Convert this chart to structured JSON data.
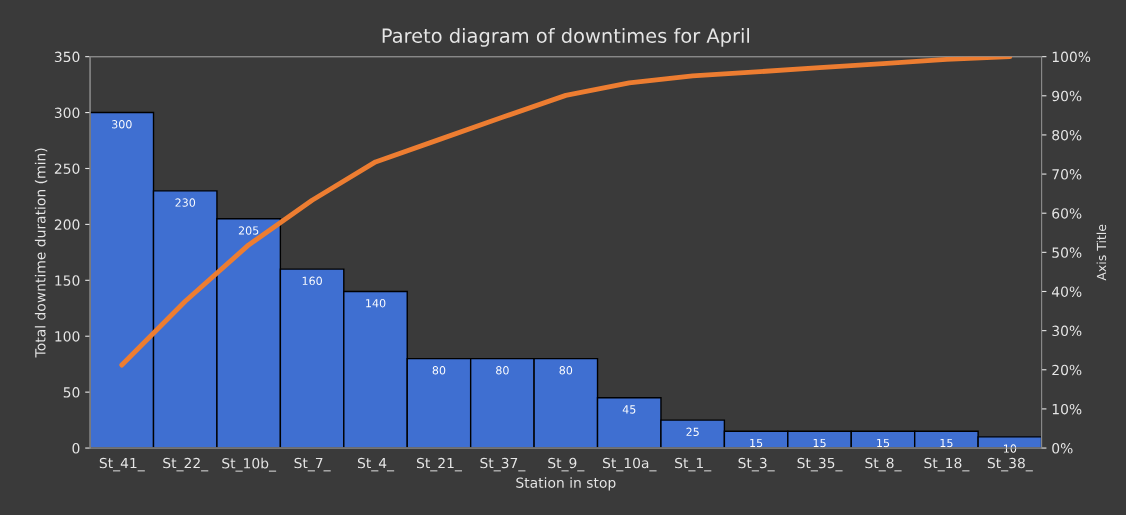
{
  "chart_data": {
    "type": "bar",
    "title": "Pareto diagram of downtimes for April",
    "xlabel": "Station in stop",
    "ylabel": "Total downtime duration (min)",
    "y2label": "Axis Title",
    "categories": [
      "St_41_",
      "St_22_",
      "St_10b_",
      "St_7_",
      "St_4_",
      "St_21_",
      "St_37_",
      "St_9_",
      "St_10a_",
      "St_1_",
      "St_3_",
      "St_35_",
      "St_8_",
      "St_18_",
      "St_38_"
    ],
    "series": [
      {
        "color": "#3f6fd1",
        "values": [
          300,
          230,
          205,
          160,
          140,
          80,
          80,
          80,
          45,
          25,
          15,
          15,
          15,
          15,
          10
        ],
        "data_labels": true
      },
      {
        "type": "line",
        "axis": "y2",
        "color": "#ed7d31",
        "values": [
          21.2,
          37.5,
          51.9,
          63.3,
          73.1,
          78.8,
          84.5,
          90.1,
          93.3,
          95.1,
          96.1,
          97.2,
          98.2,
          99.3,
          100
        ]
      }
    ],
    "ylim": [
      0,
      350
    ],
    "yticks": [
      0,
      50,
      100,
      150,
      200,
      250,
      300,
      350
    ],
    "y2lim": [
      0,
      100
    ],
    "y2ticks": [
      {
        "value": 0,
        "label": "0%"
      },
      {
        "value": 10,
        "label": "10%"
      },
      {
        "value": 20,
        "label": "20%"
      },
      {
        "value": 30,
        "label": "30%"
      },
      {
        "value": 40,
        "label": "40%"
      },
      {
        "value": 50,
        "label": "50%"
      },
      {
        "value": 60,
        "label": "60%"
      },
      {
        "value": 70,
        "label": "70%"
      },
      {
        "value": 80,
        "label": "80%"
      },
      {
        "value": 90,
        "label": "90%"
      },
      {
        "value": 100,
        "label": "100%"
      }
    ],
    "grid": false,
    "legend": false,
    "marker": "none",
    "line_style": "solid"
  }
}
